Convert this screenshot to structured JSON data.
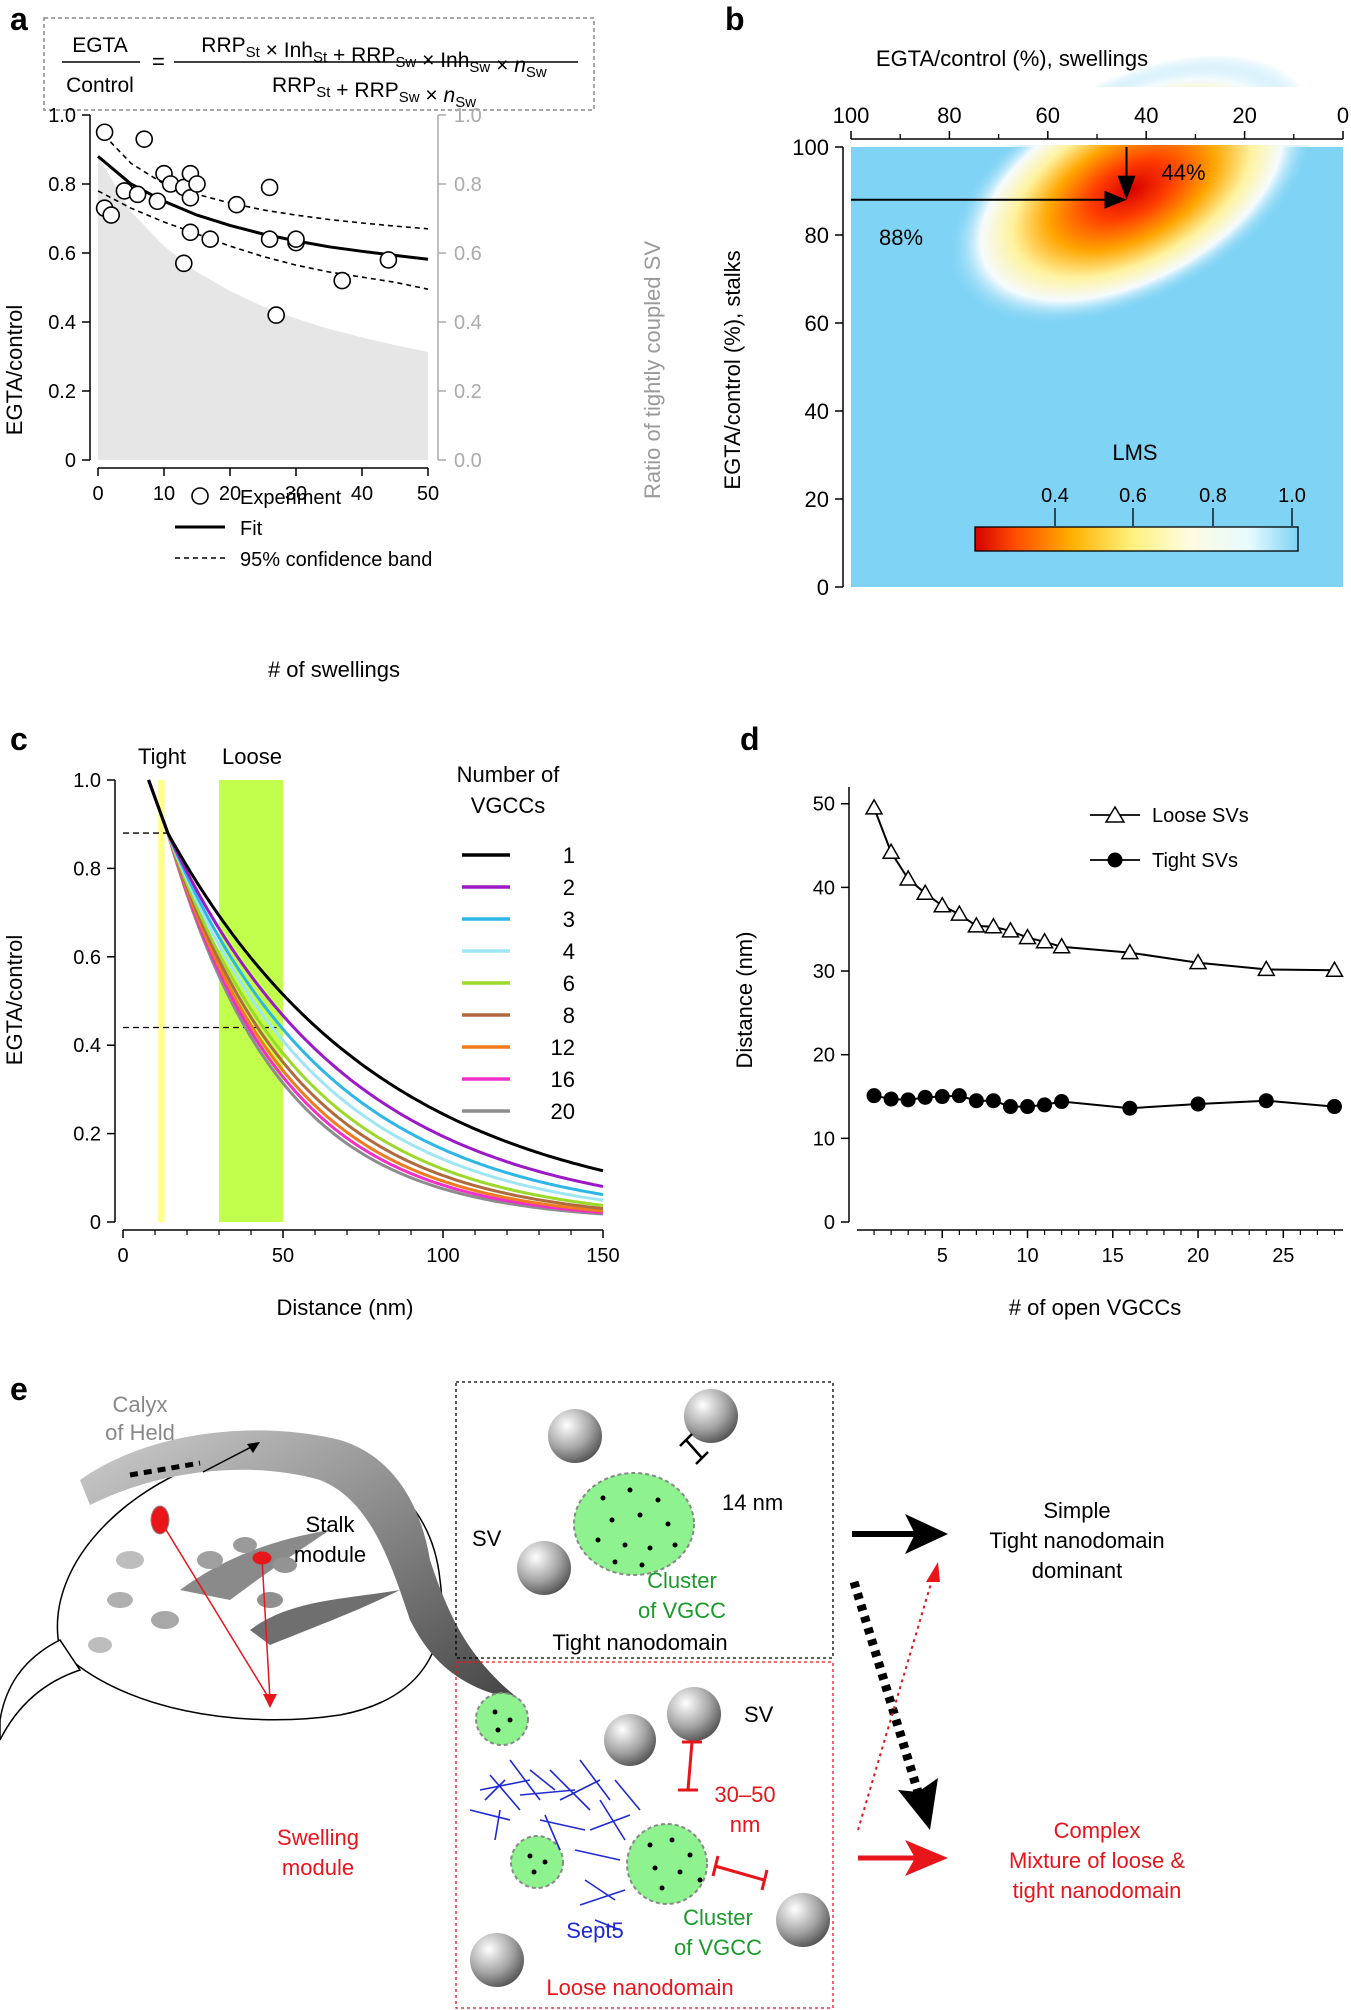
{
  "panel_labels": [
    "a",
    "b",
    "c",
    "d",
    "e"
  ],
  "formula": {
    "lhs_top": "EGTA",
    "lhs_bottom": "Control",
    "equals": "=",
    "num": [
      {
        "t": "RRP",
        "s": "St"
      },
      {
        "t": " × Inh",
        "s": "St"
      },
      {
        "t": " + RRP",
        "s": "Sw"
      },
      {
        "t": " × Inh",
        "s": "Sw"
      },
      {
        "t": " × ",
        "s": ""
      },
      {
        "t": "n",
        "s": "Sw",
        "italic": true
      }
    ],
    "den": [
      {
        "t": "RRP",
        "s": "St"
      },
      {
        "t": " + RRP",
        "s": "Sw"
      },
      {
        "t": " × ",
        "s": ""
      },
      {
        "t": "n",
        "s": "Sw",
        "italic": true
      }
    ]
  },
  "chart_data": [
    {
      "panel": "a",
      "type": "scatter",
      "xlabel": "# of swellings",
      "ylabel": "EGTA/control",
      "y2label": "Ratio of tightly coupled SV",
      "xlim": [
        0,
        50
      ],
      "ylim": [
        0,
        1.0
      ],
      "xticks": [
        "0",
        "10",
        "20",
        "30",
        "40",
        "50"
      ],
      "yticks": [
        "0",
        "0.2",
        "0.4",
        "0.6",
        "0.8",
        "1.0"
      ],
      "y2ticks": [
        "0.0",
        "0.2",
        "0.4",
        "0.6",
        "0.8",
        "1.0"
      ],
      "legend": [
        "Experiment",
        "Fit",
        "95% confidence band"
      ],
      "points": [
        [
          1,
          0.95
        ],
        [
          1,
          0.73
        ],
        [
          2,
          0.71
        ],
        [
          4,
          0.78
        ],
        [
          6,
          0.77
        ],
        [
          7,
          0.93
        ],
        [
          9,
          0.75
        ],
        [
          10,
          0.83
        ],
        [
          11,
          0.8
        ],
        [
          13,
          0.79
        ],
        [
          13,
          0.57
        ],
        [
          14,
          0.83
        ],
        [
          14,
          0.76
        ],
        [
          14,
          0.66
        ],
        [
          15,
          0.8
        ],
        [
          17,
          0.64
        ],
        [
          21,
          0.74
        ],
        [
          26,
          0.79
        ],
        [
          26,
          0.64
        ],
        [
          27,
          0.42
        ],
        [
          30,
          0.63
        ],
        [
          30,
          0.64
        ],
        [
          37,
          0.52
        ],
        [
          44,
          0.58
        ]
      ],
      "fit": {
        "x": [
          0,
          5,
          10,
          15,
          20,
          25,
          30,
          35,
          40,
          45,
          50
        ],
        "y": [
          0.88,
          0.8,
          0.75,
          0.71,
          0.68,
          0.655,
          0.635,
          0.618,
          0.605,
          0.593,
          0.582
        ]
      },
      "band_upper": {
        "x": [
          0,
          5,
          10,
          15,
          20,
          25,
          30,
          35,
          40,
          45,
          50
        ],
        "y": [
          0.96,
          0.86,
          0.8,
          0.77,
          0.745,
          0.725,
          0.71,
          0.697,
          0.687,
          0.678,
          0.67
        ]
      },
      "band_lower": {
        "x": [
          0,
          5,
          10,
          15,
          20,
          25,
          30,
          35,
          40,
          45,
          50
        ],
        "y": [
          0.78,
          0.73,
          0.69,
          0.655,
          0.62,
          0.59,
          0.565,
          0.545,
          0.53,
          0.515,
          0.495
        ]
      },
      "tight_ratio": {
        "x": [
          0,
          5,
          10,
          15,
          20,
          25,
          30,
          35,
          40,
          45,
          50
        ],
        "y": [
          0.88,
          0.72,
          0.62,
          0.545,
          0.49,
          0.445,
          0.41,
          0.38,
          0.355,
          0.333,
          0.313
        ]
      }
    },
    {
      "panel": "b",
      "type": "heatmap",
      "title": "EGTA/control (%), swellings",
      "ylabel": "EGTA/control (%), stalks",
      "xlim": [
        100,
        0
      ],
      "ylim": [
        0,
        100
      ],
      "xticks": [
        "100",
        "80",
        "60",
        "40",
        "20",
        "0"
      ],
      "yticks": [
        "0",
        "20",
        "40",
        "60",
        "80",
        "100"
      ],
      "colorbar_label": "LMS",
      "colorbar_ticks": [
        "0.4",
        "0.6",
        "0.8",
        "1.0"
      ],
      "optimum": {
        "x": 44,
        "y": 88
      },
      "annotations": [
        "44%",
        "88%"
      ]
    },
    {
      "panel": "c",
      "type": "line",
      "xlabel": "Distance (nm)",
      "ylabel": "EGTA/control",
      "xlim": [
        0,
        150
      ],
      "ylim": [
        0,
        1.0
      ],
      "xticks": [
        "0",
        "50",
        "100",
        "150"
      ],
      "yticks": [
        "0",
        "0.2",
        "0.4",
        "0.6",
        "0.8",
        "1.0"
      ],
      "region_labels": [
        "Tight",
        "Loose"
      ],
      "legend_title": [
        "Number of",
        "VGCCs"
      ],
      "series": [
        {
          "name": "1",
          "color": "#000000",
          "k": 0.0149
        },
        {
          "name": "2",
          "color": "#9b19c6",
          "k": 0.0176
        },
        {
          "name": "3",
          "color": "#2db7e6",
          "k": 0.0195
        },
        {
          "name": "4",
          "color": "#9fe6f5",
          "k": 0.0212
        },
        {
          "name": "6",
          "color": "#9cd92a",
          "k": 0.0232
        },
        {
          "name": "8",
          "color": "#b06a3e",
          "k": 0.0247
        },
        {
          "name": "12",
          "color": "#f07a1e",
          "k": 0.0262
        },
        {
          "name": "16",
          "color": "#f030c8",
          "k": 0.0274
        },
        {
          "name": "20",
          "color": "#8c8c8c",
          "k": 0.0286
        }
      ]
    },
    {
      "panel": "d",
      "type": "line",
      "xlabel": "# of open VGCCs",
      "ylabel": "Distance (nm)",
      "xlim": [
        0,
        28
      ],
      "ylim": [
        0,
        50
      ],
      "xticks": [
        "5",
        "10",
        "15",
        "20",
        "25"
      ],
      "yticks": [
        "0",
        "10",
        "20",
        "30",
        "40",
        "50"
      ],
      "series": [
        {
          "name": "Loose SVs",
          "x": [
            1,
            2,
            3,
            4,
            5,
            6,
            7,
            8,
            9,
            10,
            11,
            12,
            16,
            20,
            24,
            28
          ],
          "y": [
            49.5,
            44.2,
            41,
            39.3,
            37.8,
            36.8,
            35.4,
            35.3,
            34.8,
            34.0,
            33.5,
            32.9,
            32.2,
            31.0,
            30.2,
            30.1
          ]
        },
        {
          "name": "Tight SVs",
          "x": [
            1,
            2,
            3,
            4,
            5,
            6,
            7,
            8,
            9,
            10,
            11,
            12,
            16,
            20,
            24,
            28
          ],
          "y": [
            15.1,
            14.7,
            14.6,
            14.9,
            15.0,
            15.1,
            14.5,
            14.5,
            13.8,
            13.8,
            14.0,
            14.4,
            13.6,
            14.1,
            14.5,
            13.8
          ]
        }
      ]
    }
  ],
  "schematic": {
    "calyx": [
      "Calyx",
      "of Held"
    ],
    "stalk": [
      "Stalk",
      "module"
    ],
    "swelling": [
      "Swelling",
      "module"
    ],
    "tight_box_title": "Tight nanodomain",
    "loose_box_title": "Loose nanodomain",
    "sv": "SV",
    "dist_tight": "14 nm",
    "dist_loose": [
      "30–50",
      "nm"
    ],
    "cluster": [
      "Cluster",
      "of VGCC"
    ],
    "sept5": "Sept5",
    "simple": [
      "Simple",
      "Tight nanodomain",
      "dominant"
    ],
    "complex": [
      "Complex",
      "Mixture of loose &",
      "tight nanodomain"
    ]
  },
  "colors": {
    "red": "#e8151b",
    "green": "#1a9a2a",
    "blue": "#1f2ad6",
    "gray_text": "#9a9a9a"
  }
}
